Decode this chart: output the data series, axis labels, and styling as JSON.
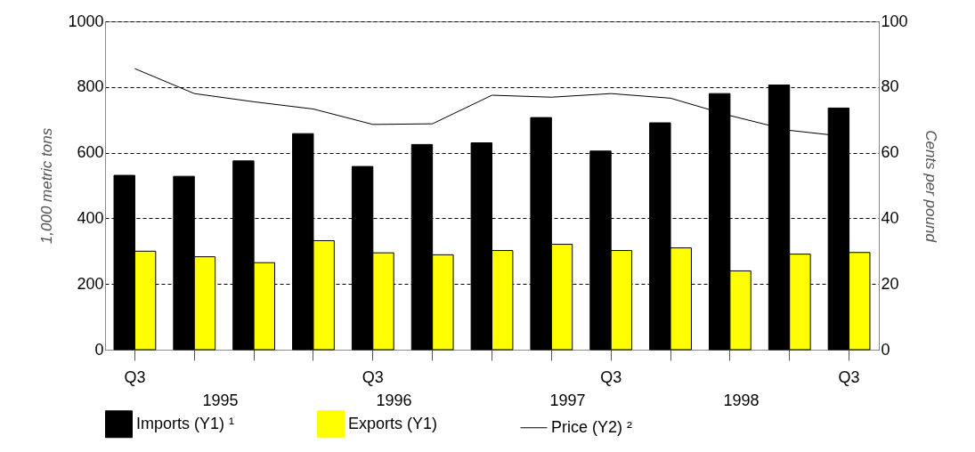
{
  "chart_data": {
    "type": "bar",
    "categories": [
      "Q3",
      null,
      null,
      null,
      "Q3",
      null,
      null,
      null,
      "Q3",
      null,
      null,
      null,
      "Q3"
    ],
    "series": [
      {
        "name": "Imports (Y1) ¹",
        "color": "#000000",
        "values": [
          531,
          528,
          575,
          658,
          558,
          625,
          630,
          707,
          605,
          691,
          780,
          806,
          736
        ]
      },
      {
        "name": "Exports (Y1)",
        "color": "#ffff00",
        "values": [
          300,
          283,
          265,
          332,
          295,
          289,
          302,
          321,
          302,
          310,
          240,
          291,
          296
        ]
      },
      {
        "name": "Price (Y2) ²",
        "type": "line",
        "axis": "y2",
        "color": "#000000",
        "values": [
          85.6,
          78.0,
          75.5,
          73.3,
          68.6,
          68.8,
          77.5,
          76.9,
          78.0,
          76.6,
          71.3,
          66.8,
          64.8
        ]
      }
    ],
    "ylabel": "1,000 metric tons",
    "y2label": "Cents per pound",
    "ylim": [
      0,
      1000
    ],
    "yticks": [
      0,
      200,
      400,
      600,
      800,
      1000
    ],
    "y2lim": [
      0,
      100
    ],
    "y2ticks": [
      0,
      20,
      40,
      60,
      80,
      100
    ],
    "annotations": [
      "1995",
      "1996",
      "1997",
      "1998"
    ],
    "grid": "y",
    "legend": "bottom"
  }
}
